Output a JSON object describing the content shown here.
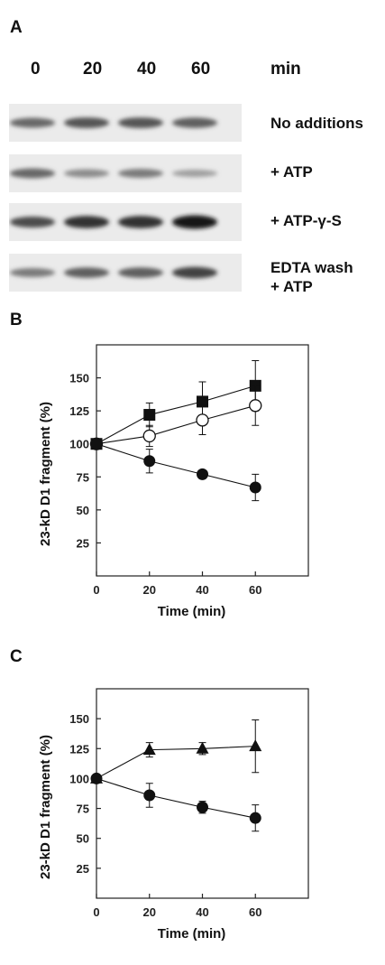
{
  "panel_a": {
    "letter": "A",
    "time_points": [
      "0",
      "20",
      "40",
      "60"
    ],
    "time_unit": "min",
    "lanes": [
      {
        "label": "No additions",
        "intensities": [
          0.55,
          0.65,
          0.65,
          0.6
        ]
      },
      {
        "label": "+ ATP",
        "intensities": [
          0.55,
          0.35,
          0.45,
          0.25
        ]
      },
      {
        "label": "+ ATP-γ-S",
        "intensities": [
          0.7,
          0.85,
          0.85,
          1.0
        ]
      },
      {
        "label": "EDTA wash\n+ ATP",
        "intensities": [
          0.45,
          0.6,
          0.6,
          0.75
        ]
      }
    ]
  },
  "panel_b": {
    "letter": "B"
  },
  "panel_c": {
    "letter": "C"
  },
  "chart_data": [
    {
      "type": "line",
      "panel": "B",
      "xlabel": "Time (min)",
      "ylabel": "23-kD D1 fragment (%)",
      "xlim": [
        0,
        80
      ],
      "ylim": [
        0,
        175
      ],
      "xticks": [
        0,
        20,
        40,
        60
      ],
      "yticks": [
        25,
        50,
        75,
        100,
        125,
        150
      ],
      "series": [
        {
          "marker": "filled-square",
          "x": [
            0,
            20,
            40,
            60
          ],
          "values": [
            100,
            122,
            132,
            144
          ],
          "errors": [
            0,
            9,
            15,
            19
          ]
        },
        {
          "marker": "open-circle",
          "x": [
            0,
            20,
            40,
            60
          ],
          "values": [
            100,
            106,
            118,
            129
          ],
          "errors": [
            0,
            8,
            11,
            15
          ]
        },
        {
          "marker": "filled-circle",
          "x": [
            0,
            20,
            40,
            60
          ],
          "values": [
            100,
            87,
            77,
            67
          ],
          "errors": [
            0,
            9,
            3,
            10
          ]
        }
      ]
    },
    {
      "type": "line",
      "panel": "C",
      "xlabel": "Time (min)",
      "ylabel": "23-kD D1 fragment (%)",
      "xlim": [
        0,
        80
      ],
      "ylim": [
        0,
        175
      ],
      "xticks": [
        0,
        20,
        40,
        60
      ],
      "yticks": [
        25,
        50,
        75,
        100,
        125,
        150
      ],
      "series": [
        {
          "marker": "filled-triangle",
          "x": [
            0,
            20,
            40,
            60
          ],
          "values": [
            100,
            124,
            125,
            127
          ],
          "errors": [
            0,
            6,
            5,
            22
          ]
        },
        {
          "marker": "filled-circle",
          "x": [
            0,
            20,
            40,
            60
          ],
          "values": [
            100,
            86,
            76,
            67
          ],
          "errors": [
            0,
            10,
            5,
            11
          ]
        }
      ]
    }
  ]
}
